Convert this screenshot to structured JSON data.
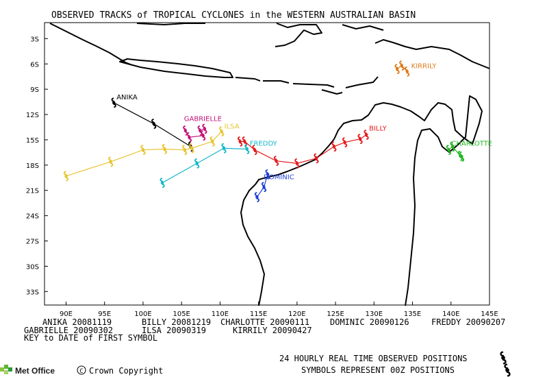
{
  "title": "OBSERVED TRACKS of TROPICAL CYCLONES in the WESTERN AUSTRALIAN BASIN",
  "lon_ticks": [
    "90E",
    "95E",
    "100E",
    "105E",
    "110E",
    "115E",
    "120E",
    "125E",
    "130E",
    "135E",
    "140E",
    "145E"
  ],
  "lat_ticks": [
    "3S",
    "6S",
    "9S",
    "12S",
    "15S",
    "18S",
    "21S",
    "24S",
    "27S",
    "30S",
    "33S"
  ],
  "storms": [
    {
      "name": "ANIKA",
      "color": "#000000",
      "points": [
        [
          96.2,
          -10.6
        ],
        [
          101.4,
          -13.1
        ],
        [
          106.2,
          -15.8
        ]
      ]
    },
    {
      "name": "BILLY",
      "color": "#e41a1c",
      "points": [
        [
          112.6,
          -15.2
        ],
        [
          113.2,
          -15.2
        ],
        [
          114.5,
          -16.2
        ],
        [
          117.3,
          -17.5
        ],
        [
          120.0,
          -17.8
        ],
        [
          122.5,
          -17.2
        ],
        [
          124.8,
          -15.8
        ],
        [
          126.2,
          -15.3
        ],
        [
          128.2,
          -14.9
        ],
        [
          129.0,
          -14.4
        ]
      ]
    },
    {
      "name": "CHARLOTTE",
      "color": "#22b722",
      "points": [
        [
          139.7,
          -16.2
        ],
        [
          140.2,
          -15.8
        ],
        [
          141.2,
          -16.9
        ],
        [
          141.4,
          -17.0
        ]
      ]
    },
    {
      "name": "DOMINIC",
      "color": "#1f3fd8",
      "points": [
        [
          116.2,
          -19.1
        ],
        [
          115.7,
          -20.6
        ],
        [
          114.8,
          -21.8
        ]
      ]
    },
    {
      "name": "FREDDY",
      "color": "#12b8c8",
      "points": [
        [
          102.5,
          -20.1
        ],
        [
          107.0,
          -17.8
        ],
        [
          110.5,
          -16.0
        ],
        [
          113.5,
          -16.1
        ]
      ]
    },
    {
      "name": "GABRIELLE",
      "color": "#c3127a",
      "points": [
        [
          105.5,
          -13.9
        ],
        [
          106.0,
          -14.7
        ],
        [
          107.8,
          -14.5
        ],
        [
          107.4,
          -13.9
        ],
        [
          108.0,
          -13.7
        ]
      ]
    },
    {
      "name": "ILSA",
      "color": "#e8c42c",
      "points": [
        [
          90.0,
          -19.3
        ],
        [
          95.8,
          -17.6
        ],
        [
          100.0,
          -16.2
        ],
        [
          102.8,
          -16.1
        ],
        [
          105.4,
          -16.2
        ],
        [
          106.3,
          -16.0
        ],
        [
          109.0,
          -15.2
        ],
        [
          110.2,
          -14.0
        ]
      ]
    },
    {
      "name": "KIRRILY",
      "color": "#e07a1a",
      "points": [
        [
          133.0,
          -6.6
        ],
        [
          133.6,
          -6.2
        ],
        [
          134.3,
          -6.9
        ]
      ]
    }
  ],
  "key_rows": [
    [
      {
        "name": "ANIKA",
        "date": "20081119"
      },
      {
        "name": "BILLY",
        "date": "20081219"
      },
      {
        "name": "CHARLOTTE",
        "date": "20090111"
      },
      {
        "name": "DOMINIC",
        "date": "20090126"
      },
      {
        "name": "FREDDY",
        "date": "20090207"
      }
    ],
    [
      {
        "name": "GABRIELLE",
        "date": "20090302"
      },
      {
        "name": "ILSA",
        "date": "20090319"
      },
      {
        "name": "KIRRILY",
        "date": "20090427"
      }
    ]
  ],
  "key_note": "KEY to DATE of FIRST SYMBOL",
  "legend_line1": "24 HOURLY REAL TIME OBSERVED POSITIONS",
  "legend_line2": "SYMBOLS REPRESENT 00Z POSITIONS",
  "brand": "Met Office",
  "copyright": "Crown Copyright",
  "copyright_symbol": "C"
}
